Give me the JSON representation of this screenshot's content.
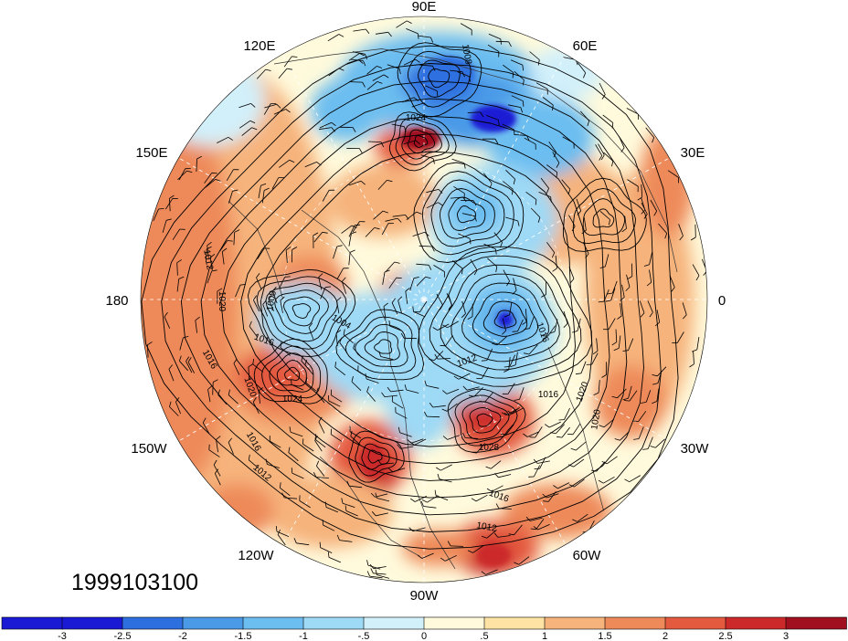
{
  "map": {
    "projection": "north-polar-stereographic",
    "shading": "temperature anomaly (filled)",
    "contours": "sea-level pressure",
    "overlay": "wind barbs",
    "date_label": "1999103100",
    "longitude_labels": [
      "90E",
      "60E",
      "30E",
      "0",
      "30W",
      "60W",
      "90W",
      "120W",
      "150W",
      "180",
      "150E",
      "120E"
    ],
    "contour_labels": [
      "1024",
      "1008",
      "1016",
      "1012",
      "1020",
      "1008",
      "1004",
      "1016",
      "1020",
      "1024",
      "1012",
      "1016",
      "1016",
      "1020",
      "1020",
      "1028",
      "1016",
      "1012",
      "1016",
      "1012"
    ]
  },
  "colorbar": {
    "ticks": [
      "-3",
      "-2.5",
      "-2",
      "-1.5",
      "-1",
      "-.5",
      "0",
      ".5",
      "1",
      "1.5",
      "2",
      "2.5",
      "3"
    ],
    "colors": [
      "#1a1ad4",
      "#2e6fe0",
      "#4a9ae8",
      "#6cbdf0",
      "#9ed9f5",
      "#d2f0fa",
      "#fffadc",
      "#ffe3a5",
      "#f6b37b",
      "#ee8a5a",
      "#e45a3f",
      "#cc2a2a",
      "#a0101e"
    ]
  }
}
